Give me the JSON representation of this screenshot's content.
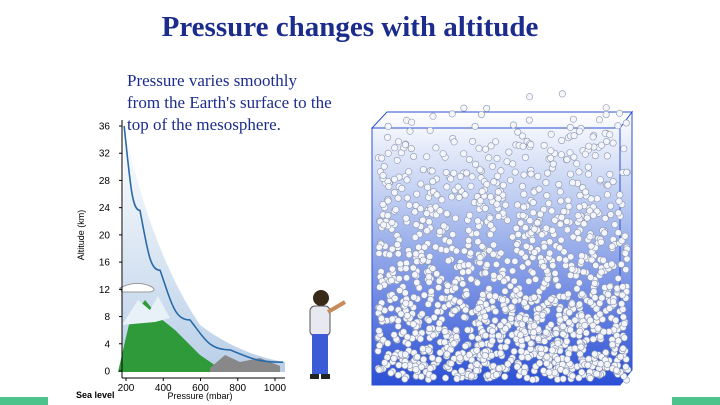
{
  "slide": {
    "title": "Pressure changes with altitude",
    "text": [
      "Pressure varies smoothly",
      "from the Earth's surface to the",
      "top of the mesosphere."
    ],
    "sea_level": "Sea level"
  },
  "chart_data": {
    "type": "line",
    "x_label": "Pressure (mbar)",
    "y_label": "Altitude (km)",
    "x": [
      190,
      275,
      383,
      544,
      759,
      1044
    ],
    "values": [
      36,
      23.6,
      14.8,
      7.5,
      3.1,
      1.3
    ],
    "color": "#2a6aa8",
    "xlim": [
      180,
      1050
    ],
    "ylim": [
      0,
      36
    ],
    "xticks": [
      200,
      400,
      600,
      800,
      1000
    ],
    "yticks": [
      0,
      4,
      8,
      12,
      16,
      20,
      24,
      28,
      32,
      36
    ]
  }
}
